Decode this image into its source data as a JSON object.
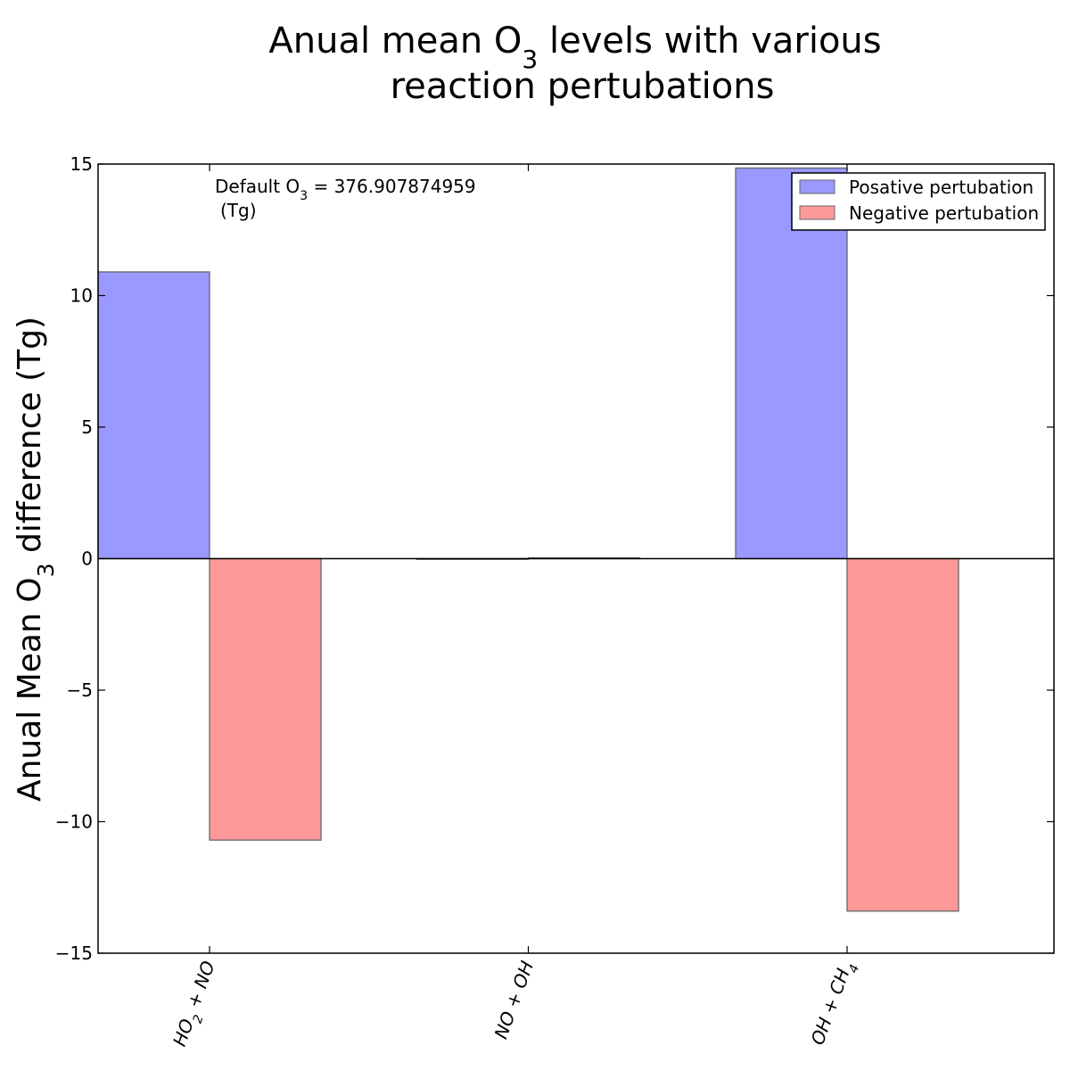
{
  "chart_data": {
    "type": "bar",
    "title": {
      "line1_pre": "Anual mean O",
      "line1_sub": "3",
      "line1_post": " levels with  various",
      "line2": "reaction pertubations"
    },
    "ylabel": {
      "pre": "Anual Mean O",
      "sub": "3",
      "post": " difference (Tg)"
    },
    "annotation": {
      "line1_pre": "Default O",
      "line1_sub": "3",
      "line1_post": " = 376.907874959",
      "line2": "(Tg)"
    },
    "ylim": [
      -15,
      15
    ],
    "yticks": [
      15,
      10,
      5,
      0,
      -5,
      -10,
      -15
    ],
    "ytick_labels": [
      "15",
      "10",
      "5",
      "0",
      "−5",
      "−10",
      "−15"
    ],
    "categories": [
      {
        "pre": "HO",
        "sub": "2",
        "post": " + NO"
      },
      {
        "pre": "NO + OH",
        "sub": "",
        "post": ""
      },
      {
        "pre": "OH + CH",
        "sub": "4",
        "post": ""
      }
    ],
    "series": [
      {
        "name": "Posative pertubation",
        "color": "#9999ff",
        "values": [
          10.9,
          0.0,
          14.85
        ]
      },
      {
        "name": "Negative pertubation",
        "color": "#ff9999",
        "values": [
          -10.7,
          0.03,
          -13.4
        ]
      }
    ],
    "grid": false,
    "legend_position": "top-right"
  }
}
